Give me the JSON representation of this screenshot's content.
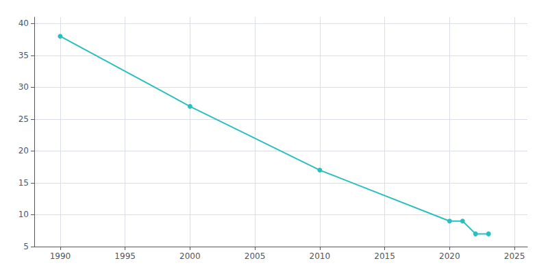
{
  "chart_data": {
    "type": "line",
    "x": [
      1990,
      2000,
      2010,
      2020,
      2021,
      2022,
      2023
    ],
    "values": [
      38,
      27,
      17,
      9,
      9,
      7,
      7
    ],
    "color": "#2abfbf",
    "marker": "circle",
    "xlim": [
      1988,
      2026
    ],
    "ylim": [
      5,
      41
    ],
    "xticks": [
      1990,
      1995,
      2000,
      2005,
      2010,
      2015,
      2020,
      2025
    ],
    "yticks": [
      5,
      10,
      15,
      20,
      25,
      30,
      35,
      40
    ],
    "grid": true
  }
}
